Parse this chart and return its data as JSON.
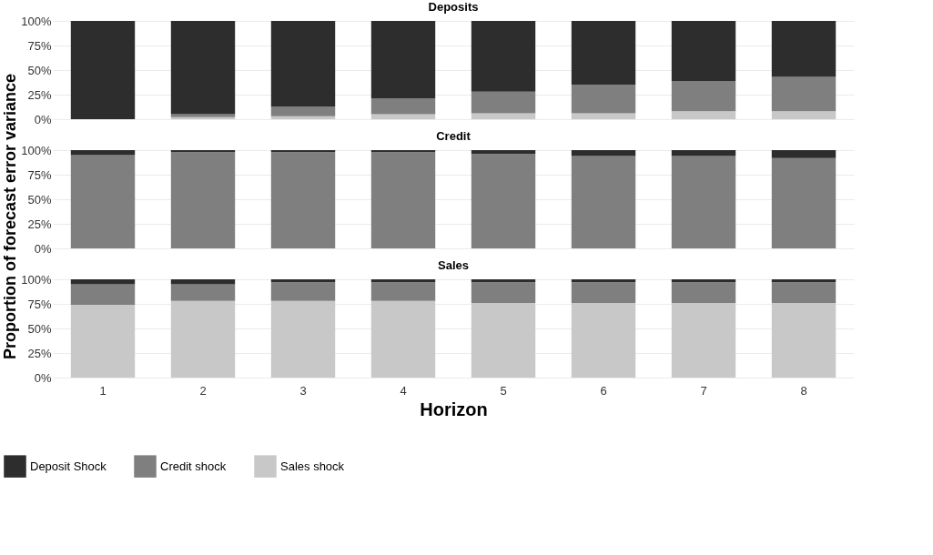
{
  "chart_data": [
    {
      "type": "bar",
      "title": "Deposits",
      "stacked": true,
      "legend": "bottom",
      "categories": [
        "1",
        "2",
        "3",
        "4",
        "5",
        "6",
        "7",
        "8"
      ],
      "ylim": [
        0,
        1
      ],
      "yticks": [
        {
          "value": 0,
          "label": "0%"
        },
        {
          "value": 0.25,
          "label": "25%"
        },
        {
          "value": 0.5,
          "label": "50%"
        },
        {
          "value": 0.75,
          "label": "75%"
        },
        {
          "value": 1,
          "label": "100%"
        }
      ],
      "grid": "y",
      "tick_labels": "y",
      "series": [
        {
          "name": "Sales shock",
          "color": "#c8c8c8",
          "values": [
            0,
            0.02,
            0.03,
            0.05,
            0.06,
            0.06,
            0.08,
            0.08
          ]
        },
        {
          "name": "Credit shock",
          "color": "#7f7f7f",
          "values": [
            0,
            0.03,
            0.1,
            0.16,
            0.22,
            0.29,
            0.31,
            0.35
          ]
        },
        {
          "name": "Deposit Shock",
          "color": "#2d2d2d",
          "values": [
            1,
            0.95,
            0.87,
            0.79,
            0.72,
            0.65,
            0.61,
            0.57
          ]
        }
      ]
    },
    {
      "type": "bar",
      "title": "Credit",
      "ylabel": "Proportion of forecast error variance",
      "stacked": true,
      "legend": "bottom",
      "categories": [
        "1",
        "2",
        "3",
        "4",
        "5",
        "6",
        "7",
        "8"
      ],
      "ylim": [
        0,
        1
      ],
      "yticks": [
        {
          "value": 0,
          "label": "0%"
        },
        {
          "value": 0.25,
          "label": "25%"
        },
        {
          "value": 0.5,
          "label": "50%"
        },
        {
          "value": 0.75,
          "label": "75%"
        },
        {
          "value": 1,
          "label": "100%"
        }
      ],
      "grid": "y",
      "tick_labels": "y",
      "series": [
        {
          "name": "Sales shock",
          "color": "#c8c8c8",
          "values": [
            0,
            0,
            0,
            0,
            0,
            0,
            0,
            0
          ]
        },
        {
          "name": "Credit shock",
          "color": "#7f7f7f",
          "values": [
            0.95,
            0.98,
            0.98,
            0.98,
            0.96,
            0.94,
            0.94,
            0.92
          ]
        },
        {
          "name": "Deposit Shock",
          "color": "#2d2d2d",
          "values": [
            0.05,
            0.02,
            0.02,
            0.02,
            0.04,
            0.06,
            0.06,
            0.08
          ]
        }
      ]
    },
    {
      "type": "bar",
      "title": "Sales",
      "xlabel": "Horizon",
      "stacked": true,
      "categories": [
        "1",
        "2",
        "3",
        "4",
        "5",
        "6",
        "7",
        "8"
      ],
      "ylim": [
        0,
        1
      ],
      "yticks": [
        {
          "value": 0,
          "label": "0%"
        },
        {
          "value": 0.25,
          "label": "25%"
        },
        {
          "value": 0.5,
          "label": "50%"
        },
        {
          "value": 0.75,
          "label": "75%"
        },
        {
          "value": 1,
          "label": "100%"
        }
      ],
      "grid": "y",
      "legend": "bottom",
      "series": [
        {
          "name": "Sales shock",
          "color": "#c8c8c8",
          "values": [
            0.74,
            0.78,
            0.78,
            0.78,
            0.76,
            0.76,
            0.76,
            0.76
          ]
        },
        {
          "name": "Credit shock",
          "color": "#7f7f7f",
          "values": [
            0.21,
            0.17,
            0.19,
            0.19,
            0.21,
            0.21,
            0.21,
            0.21
          ]
        },
        {
          "name": "Deposit Shock",
          "color": "#2d2d2d",
          "values": [
            0.05,
            0.05,
            0.03,
            0.03,
            0.03,
            0.03,
            0.03,
            0.03
          ]
        }
      ]
    }
  ]
}
